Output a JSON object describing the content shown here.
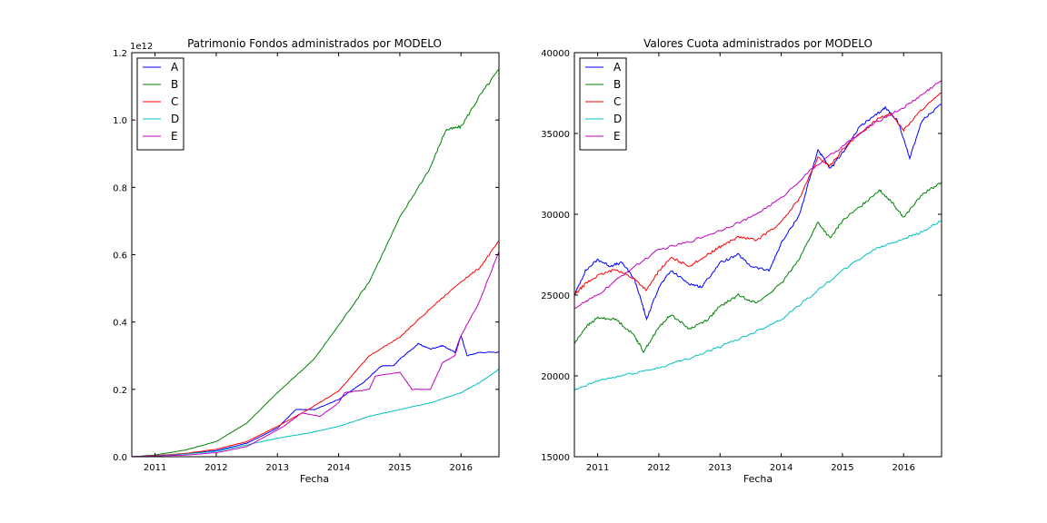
{
  "chart_data": [
    {
      "type": "line",
      "title": "Patrimonio Fondos administrados por MODELO",
      "xlabel": "Fecha",
      "ylabel": "",
      "y_offset_label": "1e12",
      "xlim": [
        2010.62,
        2016.62
      ],
      "ylim": [
        0,
        1.2
      ],
      "x_ticks": [
        2011,
        2012,
        2013,
        2014,
        2015,
        2016
      ],
      "x_tick_labels": [
        "2011",
        "2012",
        "2013",
        "2014",
        "2015",
        "2016"
      ],
      "y_ticks": [
        0,
        0.2,
        0.4,
        0.6,
        0.8,
        1.0,
        1.2
      ],
      "y_tick_labels": [
        "0.0",
        "0.2",
        "0.4",
        "0.6",
        "0.8",
        "1.0",
        "1.2"
      ],
      "grid": false,
      "legend_position": "top-left",
      "series": [
        {
          "name": "A",
          "color": "#0000ff",
          "x": [
            2010.62,
            2011.0,
            2011.5,
            2012.0,
            2012.5,
            2013.0,
            2013.3,
            2013.6,
            2014.0,
            2014.4,
            2014.7,
            2014.9,
            2015.0,
            2015.3,
            2015.5,
            2015.7,
            2015.9,
            2016.0,
            2016.1,
            2016.3,
            2016.62
          ],
          "y": [
            0.0,
            0.003,
            0.009,
            0.018,
            0.04,
            0.085,
            0.14,
            0.14,
            0.17,
            0.22,
            0.27,
            0.27,
            0.29,
            0.335,
            0.32,
            0.33,
            0.31,
            0.36,
            0.3,
            0.31,
            0.31
          ]
        },
        {
          "name": "B",
          "color": "#008000",
          "x": [
            2010.62,
            2011.0,
            2011.5,
            2012.0,
            2012.5,
            2013.0,
            2013.3,
            2013.6,
            2014.0,
            2014.5,
            2015.0,
            2015.5,
            2015.75,
            2016.0,
            2016.3,
            2016.62
          ],
          "y": [
            0.0,
            0.005,
            0.02,
            0.045,
            0.1,
            0.19,
            0.24,
            0.29,
            0.39,
            0.52,
            0.71,
            0.86,
            0.97,
            0.98,
            1.07,
            1.15
          ]
        },
        {
          "name": "C",
          "color": "#ff0000",
          "x": [
            2010.62,
            2011.0,
            2011.5,
            2012.0,
            2012.5,
            2013.0,
            2013.5,
            2014.0,
            2014.5,
            2015.0,
            2015.5,
            2016.0,
            2016.3,
            2016.62
          ],
          "y": [
            0.0,
            0.003,
            0.01,
            0.022,
            0.045,
            0.09,
            0.14,
            0.195,
            0.3,
            0.355,
            0.44,
            0.52,
            0.56,
            0.64
          ]
        },
        {
          "name": "D",
          "color": "#00bfbf",
          "x": [
            2010.62,
            2011.0,
            2011.5,
            2012.0,
            2012.5,
            2013.0,
            2013.5,
            2014.0,
            2014.5,
            2015.0,
            2015.5,
            2016.0,
            2016.3,
            2016.62
          ],
          "y": [
            0.0,
            0.002,
            0.008,
            0.016,
            0.035,
            0.055,
            0.07,
            0.09,
            0.12,
            0.14,
            0.16,
            0.19,
            0.22,
            0.26
          ]
        },
        {
          "name": "E",
          "color": "#bf00bf",
          "x": [
            2010.62,
            2011.0,
            2011.5,
            2012.0,
            2012.5,
            2013.0,
            2013.1,
            2013.4,
            2013.7,
            2014.0,
            2014.1,
            2014.5,
            2014.6,
            2015.0,
            2015.2,
            2015.5,
            2015.7,
            2015.9,
            2016.0,
            2016.3,
            2016.62
          ],
          "y": [
            0.0,
            0.002,
            0.005,
            0.012,
            0.03,
            0.08,
            0.09,
            0.13,
            0.12,
            0.16,
            0.19,
            0.2,
            0.24,
            0.25,
            0.2,
            0.2,
            0.28,
            0.3,
            0.36,
            0.46,
            0.61
          ]
        }
      ]
    },
    {
      "type": "line",
      "title": "Valores Cuota administrados por MODELO",
      "xlabel": "Fecha",
      "ylabel": "",
      "xlim": [
        2010.62,
        2016.62
      ],
      "ylim": [
        15000,
        40000
      ],
      "x_ticks": [
        2011,
        2012,
        2013,
        2014,
        2015,
        2016
      ],
      "x_tick_labels": [
        "2011",
        "2012",
        "2013",
        "2014",
        "2015",
        "2016"
      ],
      "y_ticks": [
        15000,
        20000,
        25000,
        30000,
        35000,
        40000
      ],
      "y_tick_labels": [
        "15000",
        "20000",
        "25000",
        "30000",
        "35000",
        "40000"
      ],
      "grid": false,
      "legend_position": "top-left",
      "series": [
        {
          "name": "A",
          "color": "#0000ff",
          "x": [
            2010.62,
            2010.8,
            2011.0,
            2011.2,
            2011.4,
            2011.6,
            2011.7,
            2011.8,
            2012.0,
            2012.2,
            2012.5,
            2012.7,
            2013.0,
            2013.3,
            2013.5,
            2013.8,
            2014.0,
            2014.3,
            2014.6,
            2014.8,
            2015.0,
            2015.3,
            2015.5,
            2015.7,
            2015.9,
            2016.1,
            2016.3,
            2016.62
          ],
          "y": [
            25000,
            26500,
            27200,
            26800,
            27000,
            26000,
            24800,
            23500,
            25500,
            26500,
            25700,
            25500,
            27000,
            27500,
            26800,
            26500,
            28200,
            30000,
            34000,
            32800,
            33800,
            35500,
            36000,
            36600,
            35800,
            33500,
            35800,
            36800
          ]
        },
        {
          "name": "B",
          "color": "#008000",
          "x": [
            2010.62,
            2010.8,
            2011.0,
            2011.3,
            2011.6,
            2011.75,
            2012.0,
            2012.2,
            2012.5,
            2012.8,
            2013.0,
            2013.3,
            2013.6,
            2014.0,
            2014.3,
            2014.6,
            2014.8,
            2015.0,
            2015.3,
            2015.6,
            2015.8,
            2016.0,
            2016.3,
            2016.62
          ],
          "y": [
            22000,
            23000,
            23600,
            23500,
            22500,
            21500,
            23000,
            23800,
            22900,
            23500,
            24300,
            25000,
            24500,
            25700,
            27300,
            29500,
            28500,
            29600,
            30500,
            31500,
            30800,
            29800,
            31200,
            32000
          ]
        },
        {
          "name": "C",
          "color": "#ff0000",
          "x": [
            2010.62,
            2010.8,
            2011.0,
            2011.3,
            2011.6,
            2011.8,
            2012.0,
            2012.2,
            2012.5,
            2012.8,
            2013.0,
            2013.3,
            2013.6,
            2014.0,
            2014.3,
            2014.6,
            2014.8,
            2015.0,
            2015.3,
            2015.6,
            2015.8,
            2016.0,
            2016.3,
            2016.62
          ],
          "y": [
            25000,
            25700,
            26200,
            26600,
            26000,
            25300,
            26500,
            27300,
            26800,
            27500,
            28000,
            28600,
            28400,
            29500,
            31000,
            33500,
            33000,
            34000,
            35000,
            36000,
            36200,
            35200,
            36500,
            37500
          ]
        },
        {
          "name": "D",
          "color": "#00bfbf",
          "x": [
            2010.62,
            2011.0,
            2011.5,
            2012.0,
            2012.5,
            2013.0,
            2013.5,
            2014.0,
            2014.5,
            2015.0,
            2015.5,
            2016.0,
            2016.3,
            2016.62
          ],
          "y": [
            19100,
            19700,
            20100,
            20500,
            21100,
            21800,
            22600,
            23500,
            25000,
            26500,
            27800,
            28500,
            28900,
            29600
          ]
        },
        {
          "name": "E",
          "color": "#bf00bf",
          "x": [
            2010.62,
            2011.0,
            2011.5,
            2012.0,
            2012.5,
            2013.0,
            2013.5,
            2014.0,
            2014.5,
            2015.0,
            2015.5,
            2016.0,
            2016.3,
            2016.62
          ],
          "y": [
            24200,
            25000,
            26500,
            27800,
            28300,
            29000,
            29800,
            31000,
            32800,
            34200,
            35600,
            36600,
            37400,
            38300
          ]
        }
      ]
    }
  ]
}
